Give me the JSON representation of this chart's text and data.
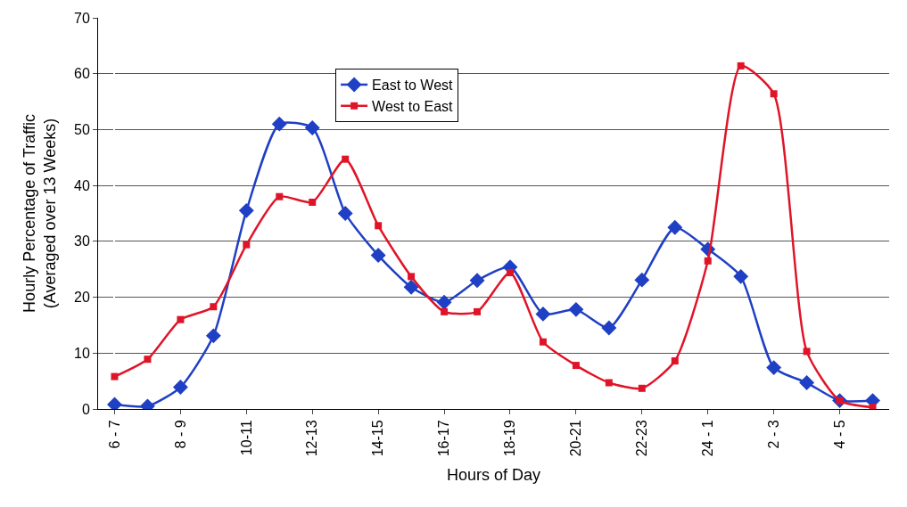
{
  "chart_data": {
    "type": "line",
    "xlabel": "Hours of Day",
    "ylabel": "Hourly Percentage of Traffic\n(Averaged over 13 Weeks)",
    "categories": [
      "6 - 7",
      null,
      "8 - 9",
      null,
      "10-11",
      null,
      "12-13",
      null,
      "14-15",
      null,
      "16-17",
      null,
      "18-19",
      null,
      "20-21",
      null,
      "22-23",
      null,
      "24 - 1",
      null,
      "2 - 3",
      null,
      "4 - 5",
      null
    ],
    "series": [
      {
        "name": "East to West",
        "color": "#1f3fc4",
        "marker": "diamond",
        "values": [
          0.8,
          0.5,
          3.9,
          13.1,
          35.5,
          51,
          50.3,
          35,
          27.5,
          21.8,
          19.1,
          23,
          25.4,
          17,
          17.8,
          14.5,
          23.1,
          32.5,
          28.6,
          23.7,
          7.4,
          4.7,
          1.5,
          1.5
        ]
      },
      {
        "name": "West to East",
        "color": "#e01428",
        "marker": "square",
        "values": [
          5.8,
          8.9,
          16,
          18.3,
          29.4,
          38,
          37,
          44.7,
          32.8,
          23.7,
          17.4,
          17.4,
          24.4,
          12,
          7.8,
          4.7,
          3.7,
          8.6,
          26.5,
          61.4,
          56.4,
          10.3,
          1.5,
          0.3
        ]
      }
    ],
    "ylim": [
      0,
      70
    ],
    "yticks": [
      0,
      10,
      20,
      30,
      40,
      50,
      60,
      70
    ],
    "grid": "y",
    "legend": "top",
    "line_style": "solid"
  }
}
